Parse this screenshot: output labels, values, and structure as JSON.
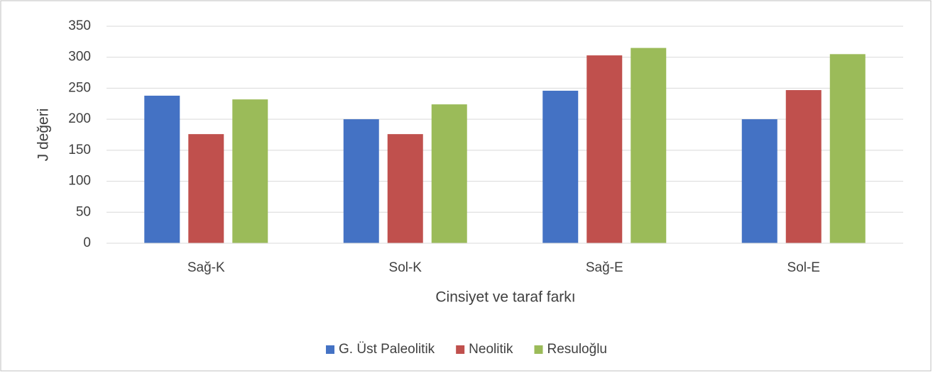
{
  "chart_data": {
    "type": "bar",
    "x_label": "Cinsiyet ve taraf farkı",
    "y_label": "J değeri",
    "categories": [
      "Sağ-K",
      "Sol-K",
      "Sağ-E",
      "Sol-E"
    ],
    "series": [
      {
        "name": "G. Üst Paleolitik",
        "color": "#4472c4",
        "values": [
          238,
          200,
          246,
          200
        ]
      },
      {
        "name": "Neolitik",
        "color": "#c0504d",
        "values": [
          176,
          176,
          303,
          247
        ]
      },
      {
        "name": "Resuloğlu",
        "color": "#9bbb59",
        "values": [
          232,
          224,
          315,
          305
        ]
      }
    ],
    "ylim": [
      0,
      350
    ],
    "yticks": [
      0,
      50,
      100,
      150,
      200,
      250,
      300,
      350
    ],
    "grid": true,
    "legend": "bottom"
  }
}
